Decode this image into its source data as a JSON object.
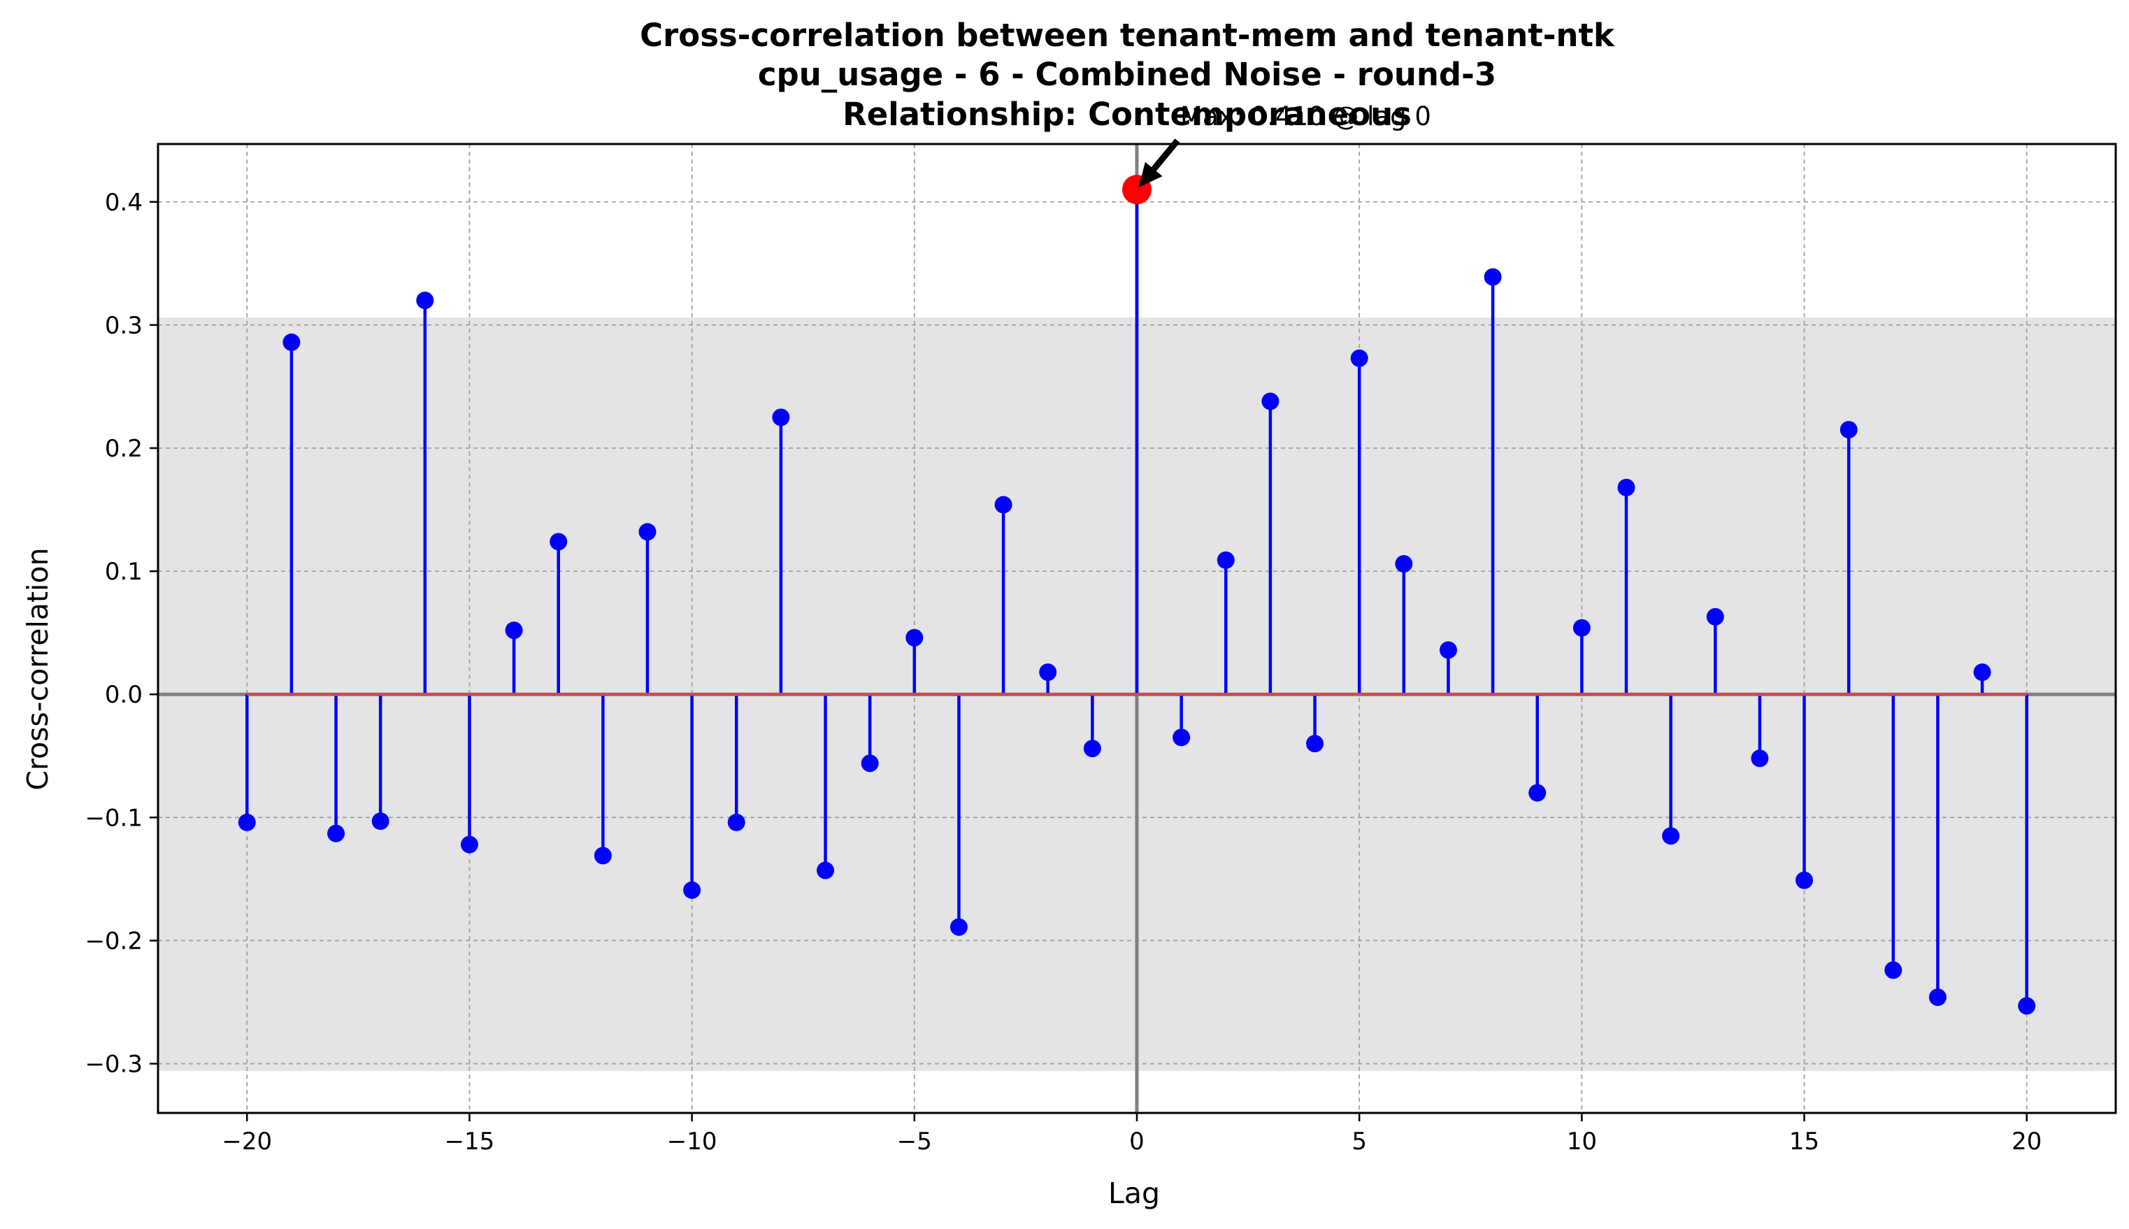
{
  "chart_data": {
    "type": "stem",
    "title_lines": [
      "Cross-correlation between tenant-mem and tenant-ntk",
      "cpu_usage - 6 - Combined Noise - round-3",
      "Relationship: Contemporaneous"
    ],
    "xlabel": "Lag",
    "ylabel": "Cross-correlation",
    "xlim": [
      -22,
      22
    ],
    "ylim": [
      -0.34,
      0.447
    ],
    "x_ticks": [
      -20,
      -15,
      -10,
      -5,
      0,
      5,
      10,
      15,
      20
    ],
    "x_tick_labels": [
      "−20",
      "−15",
      "−10",
      "−5",
      "0",
      "5",
      "10",
      "15",
      "20"
    ],
    "y_ticks": [
      -0.3,
      -0.2,
      -0.1,
      0.0,
      0.1,
      0.2,
      0.3,
      0.4
    ],
    "y_tick_labels": [
      "−0.3",
      "−0.2",
      "−0.1",
      "0.0",
      "0.1",
      "0.2",
      "0.3",
      "0.4"
    ],
    "grid": true,
    "confidence_band": [
      -0.306,
      0.306
    ],
    "x": [
      -20,
      -19,
      -18,
      -17,
      -16,
      -15,
      -14,
      -13,
      -12,
      -11,
      -10,
      -9,
      -8,
      -7,
      -6,
      -5,
      -4,
      -3,
      -2,
      -1,
      0,
      1,
      2,
      3,
      4,
      5,
      6,
      7,
      8,
      9,
      10,
      11,
      12,
      13,
      14,
      15,
      16,
      17,
      18,
      19,
      20
    ],
    "y": [
      -0.104,
      0.286,
      -0.113,
      -0.103,
      0.32,
      -0.122,
      0.052,
      0.124,
      -0.131,
      0.132,
      -0.159,
      -0.104,
      0.225,
      -0.143,
      -0.056,
      0.046,
      -0.189,
      0.154,
      0.018,
      -0.044,
      0.41,
      -0.035,
      0.109,
      0.238,
      -0.04,
      0.273,
      0.106,
      0.036,
      0.339,
      -0.08,
      0.054,
      0.168,
      -0.115,
      0.063,
      -0.052,
      -0.151,
      0.215,
      -0.224,
      -0.246,
      0.018,
      -0.253
    ],
    "max_point": {
      "lag": 0,
      "value": 0.41
    },
    "annotation": "Max: 0.410 @ lag 0",
    "colors": {
      "stem": "#0000ff",
      "marker": "#0000ff",
      "max_marker": "#ff0000",
      "baseline": "#c0504d",
      "band": "#e4e4e6",
      "zero_lines": "#808080",
      "grid": "#a0a0a0"
    }
  }
}
